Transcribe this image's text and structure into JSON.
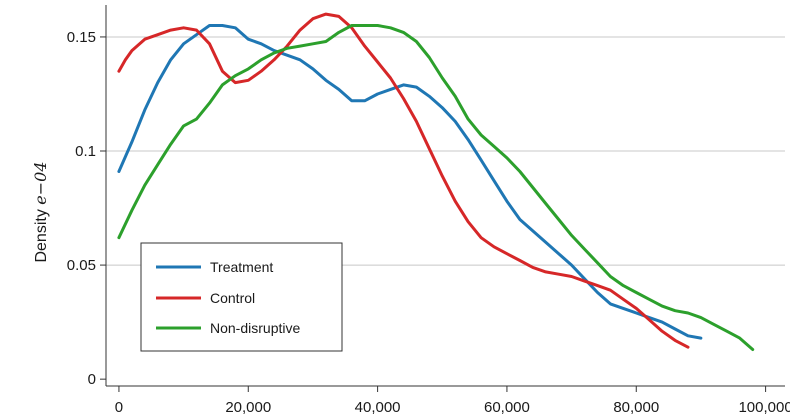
{
  "chart_data": {
    "type": "line",
    "title": "",
    "xlabel": "",
    "ylabel": "Density",
    "ylabel_math": "e−04",
    "xlim": [
      -2000,
      103000
    ],
    "ylim": [
      -0.003,
      0.164
    ],
    "x_ticks": [
      0,
      20000,
      40000,
      60000,
      80000,
      100000
    ],
    "x_tick_labels": [
      "0",
      "20,000",
      "40,000",
      "60,000",
      "80,000",
      "100,000"
    ],
    "y_ticks": [
      0,
      0.05,
      0.1,
      0.15
    ],
    "y_tick_labels": [
      "0",
      "0.05",
      "0.1",
      "0.15"
    ],
    "grid": "horizontal",
    "legend": "lower-left",
    "series": [
      {
        "name": "Treatment",
        "color": "#1f77b4",
        "points": [
          [
            0,
            0.091
          ],
          [
            2000,
            0.104
          ],
          [
            4000,
            0.118
          ],
          [
            6000,
            0.13
          ],
          [
            8000,
            0.14
          ],
          [
            10000,
            0.147
          ],
          [
            12000,
            0.151
          ],
          [
            14000,
            0.155
          ],
          [
            16000,
            0.155
          ],
          [
            18000,
            0.154
          ],
          [
            20000,
            0.149
          ],
          [
            22000,
            0.147
          ],
          [
            24000,
            0.144
          ],
          [
            26000,
            0.142
          ],
          [
            28000,
            0.14
          ],
          [
            30000,
            0.136
          ],
          [
            32000,
            0.131
          ],
          [
            34000,
            0.127
          ],
          [
            36000,
            0.122
          ],
          [
            38000,
            0.122
          ],
          [
            40000,
            0.125
          ],
          [
            42000,
            0.127
          ],
          [
            44000,
            0.129
          ],
          [
            46000,
            0.128
          ],
          [
            48000,
            0.124
          ],
          [
            50000,
            0.119
          ],
          [
            52000,
            0.113
          ],
          [
            54000,
            0.105
          ],
          [
            56000,
            0.096
          ],
          [
            58000,
            0.087
          ],
          [
            60000,
            0.078
          ],
          [
            62000,
            0.07
          ],
          [
            64000,
            0.065
          ],
          [
            66000,
            0.06
          ],
          [
            68000,
            0.055
          ],
          [
            70000,
            0.05
          ],
          [
            72000,
            0.044
          ],
          [
            74000,
            0.038
          ],
          [
            76000,
            0.033
          ],
          [
            78000,
            0.031
          ],
          [
            80000,
            0.029
          ],
          [
            82000,
            0.027
          ],
          [
            84000,
            0.025
          ],
          [
            86000,
            0.022
          ],
          [
            88000,
            0.019
          ],
          [
            90000,
            0.018
          ]
        ]
      },
      {
        "name": "Control",
        "color": "#d62728",
        "points": [
          [
            0,
            0.135
          ],
          [
            1000,
            0.14
          ],
          [
            2000,
            0.144
          ],
          [
            4000,
            0.149
          ],
          [
            6000,
            0.151
          ],
          [
            8000,
            0.153
          ],
          [
            10000,
            0.154
          ],
          [
            12000,
            0.153
          ],
          [
            14000,
            0.147
          ],
          [
            16000,
            0.135
          ],
          [
            18000,
            0.13
          ],
          [
            20000,
            0.131
          ],
          [
            22000,
            0.135
          ],
          [
            24000,
            0.14
          ],
          [
            26000,
            0.146
          ],
          [
            28000,
            0.153
          ],
          [
            30000,
            0.158
          ],
          [
            32000,
            0.16
          ],
          [
            34000,
            0.159
          ],
          [
            36000,
            0.154
          ],
          [
            38000,
            0.146
          ],
          [
            40000,
            0.139
          ],
          [
            42000,
            0.132
          ],
          [
            44000,
            0.123
          ],
          [
            46000,
            0.113
          ],
          [
            48000,
            0.101
          ],
          [
            50000,
            0.089
          ],
          [
            52000,
            0.078
          ],
          [
            54000,
            0.069
          ],
          [
            56000,
            0.062
          ],
          [
            58000,
            0.058
          ],
          [
            60000,
            0.055
          ],
          [
            62000,
            0.052
          ],
          [
            64000,
            0.049
          ],
          [
            66000,
            0.047
          ],
          [
            68000,
            0.046
          ],
          [
            70000,
            0.045
          ],
          [
            72000,
            0.043
          ],
          [
            74000,
            0.041
          ],
          [
            76000,
            0.039
          ],
          [
            78000,
            0.035
          ],
          [
            80000,
            0.031
          ],
          [
            82000,
            0.026
          ],
          [
            84000,
            0.021
          ],
          [
            86000,
            0.017
          ],
          [
            88000,
            0.014
          ]
        ]
      },
      {
        "name": "Non-disruptive",
        "color": "#2ca02c",
        "points": [
          [
            0,
            0.062
          ],
          [
            2000,
            0.074
          ],
          [
            4000,
            0.085
          ],
          [
            6000,
            0.094
          ],
          [
            8000,
            0.103
          ],
          [
            10000,
            0.111
          ],
          [
            12000,
            0.114
          ],
          [
            14000,
            0.121
          ],
          [
            16000,
            0.129
          ],
          [
            18000,
            0.133
          ],
          [
            20000,
            0.136
          ],
          [
            22000,
            0.14
          ],
          [
            24000,
            0.143
          ],
          [
            26000,
            0.145
          ],
          [
            28000,
            0.146
          ],
          [
            30000,
            0.147
          ],
          [
            32000,
            0.148
          ],
          [
            34000,
            0.152
          ],
          [
            36000,
            0.155
          ],
          [
            38000,
            0.155
          ],
          [
            40000,
            0.155
          ],
          [
            42000,
            0.154
          ],
          [
            44000,
            0.152
          ],
          [
            46000,
            0.148
          ],
          [
            48000,
            0.141
          ],
          [
            50000,
            0.132
          ],
          [
            52000,
            0.124
          ],
          [
            54000,
            0.114
          ],
          [
            56000,
            0.107
          ],
          [
            58000,
            0.102
          ],
          [
            60000,
            0.097
          ],
          [
            62000,
            0.091
          ],
          [
            64000,
            0.084
          ],
          [
            66000,
            0.077
          ],
          [
            68000,
            0.07
          ],
          [
            70000,
            0.063
          ],
          [
            72000,
            0.057
          ],
          [
            74000,
            0.051
          ],
          [
            76000,
            0.045
          ],
          [
            78000,
            0.041
          ],
          [
            80000,
            0.038
          ],
          [
            82000,
            0.035
          ],
          [
            84000,
            0.032
          ],
          [
            86000,
            0.03
          ],
          [
            88000,
            0.029
          ],
          [
            90000,
            0.027
          ],
          [
            92000,
            0.024
          ],
          [
            94000,
            0.021
          ],
          [
            96000,
            0.018
          ],
          [
            98000,
            0.013
          ]
        ]
      }
    ]
  }
}
